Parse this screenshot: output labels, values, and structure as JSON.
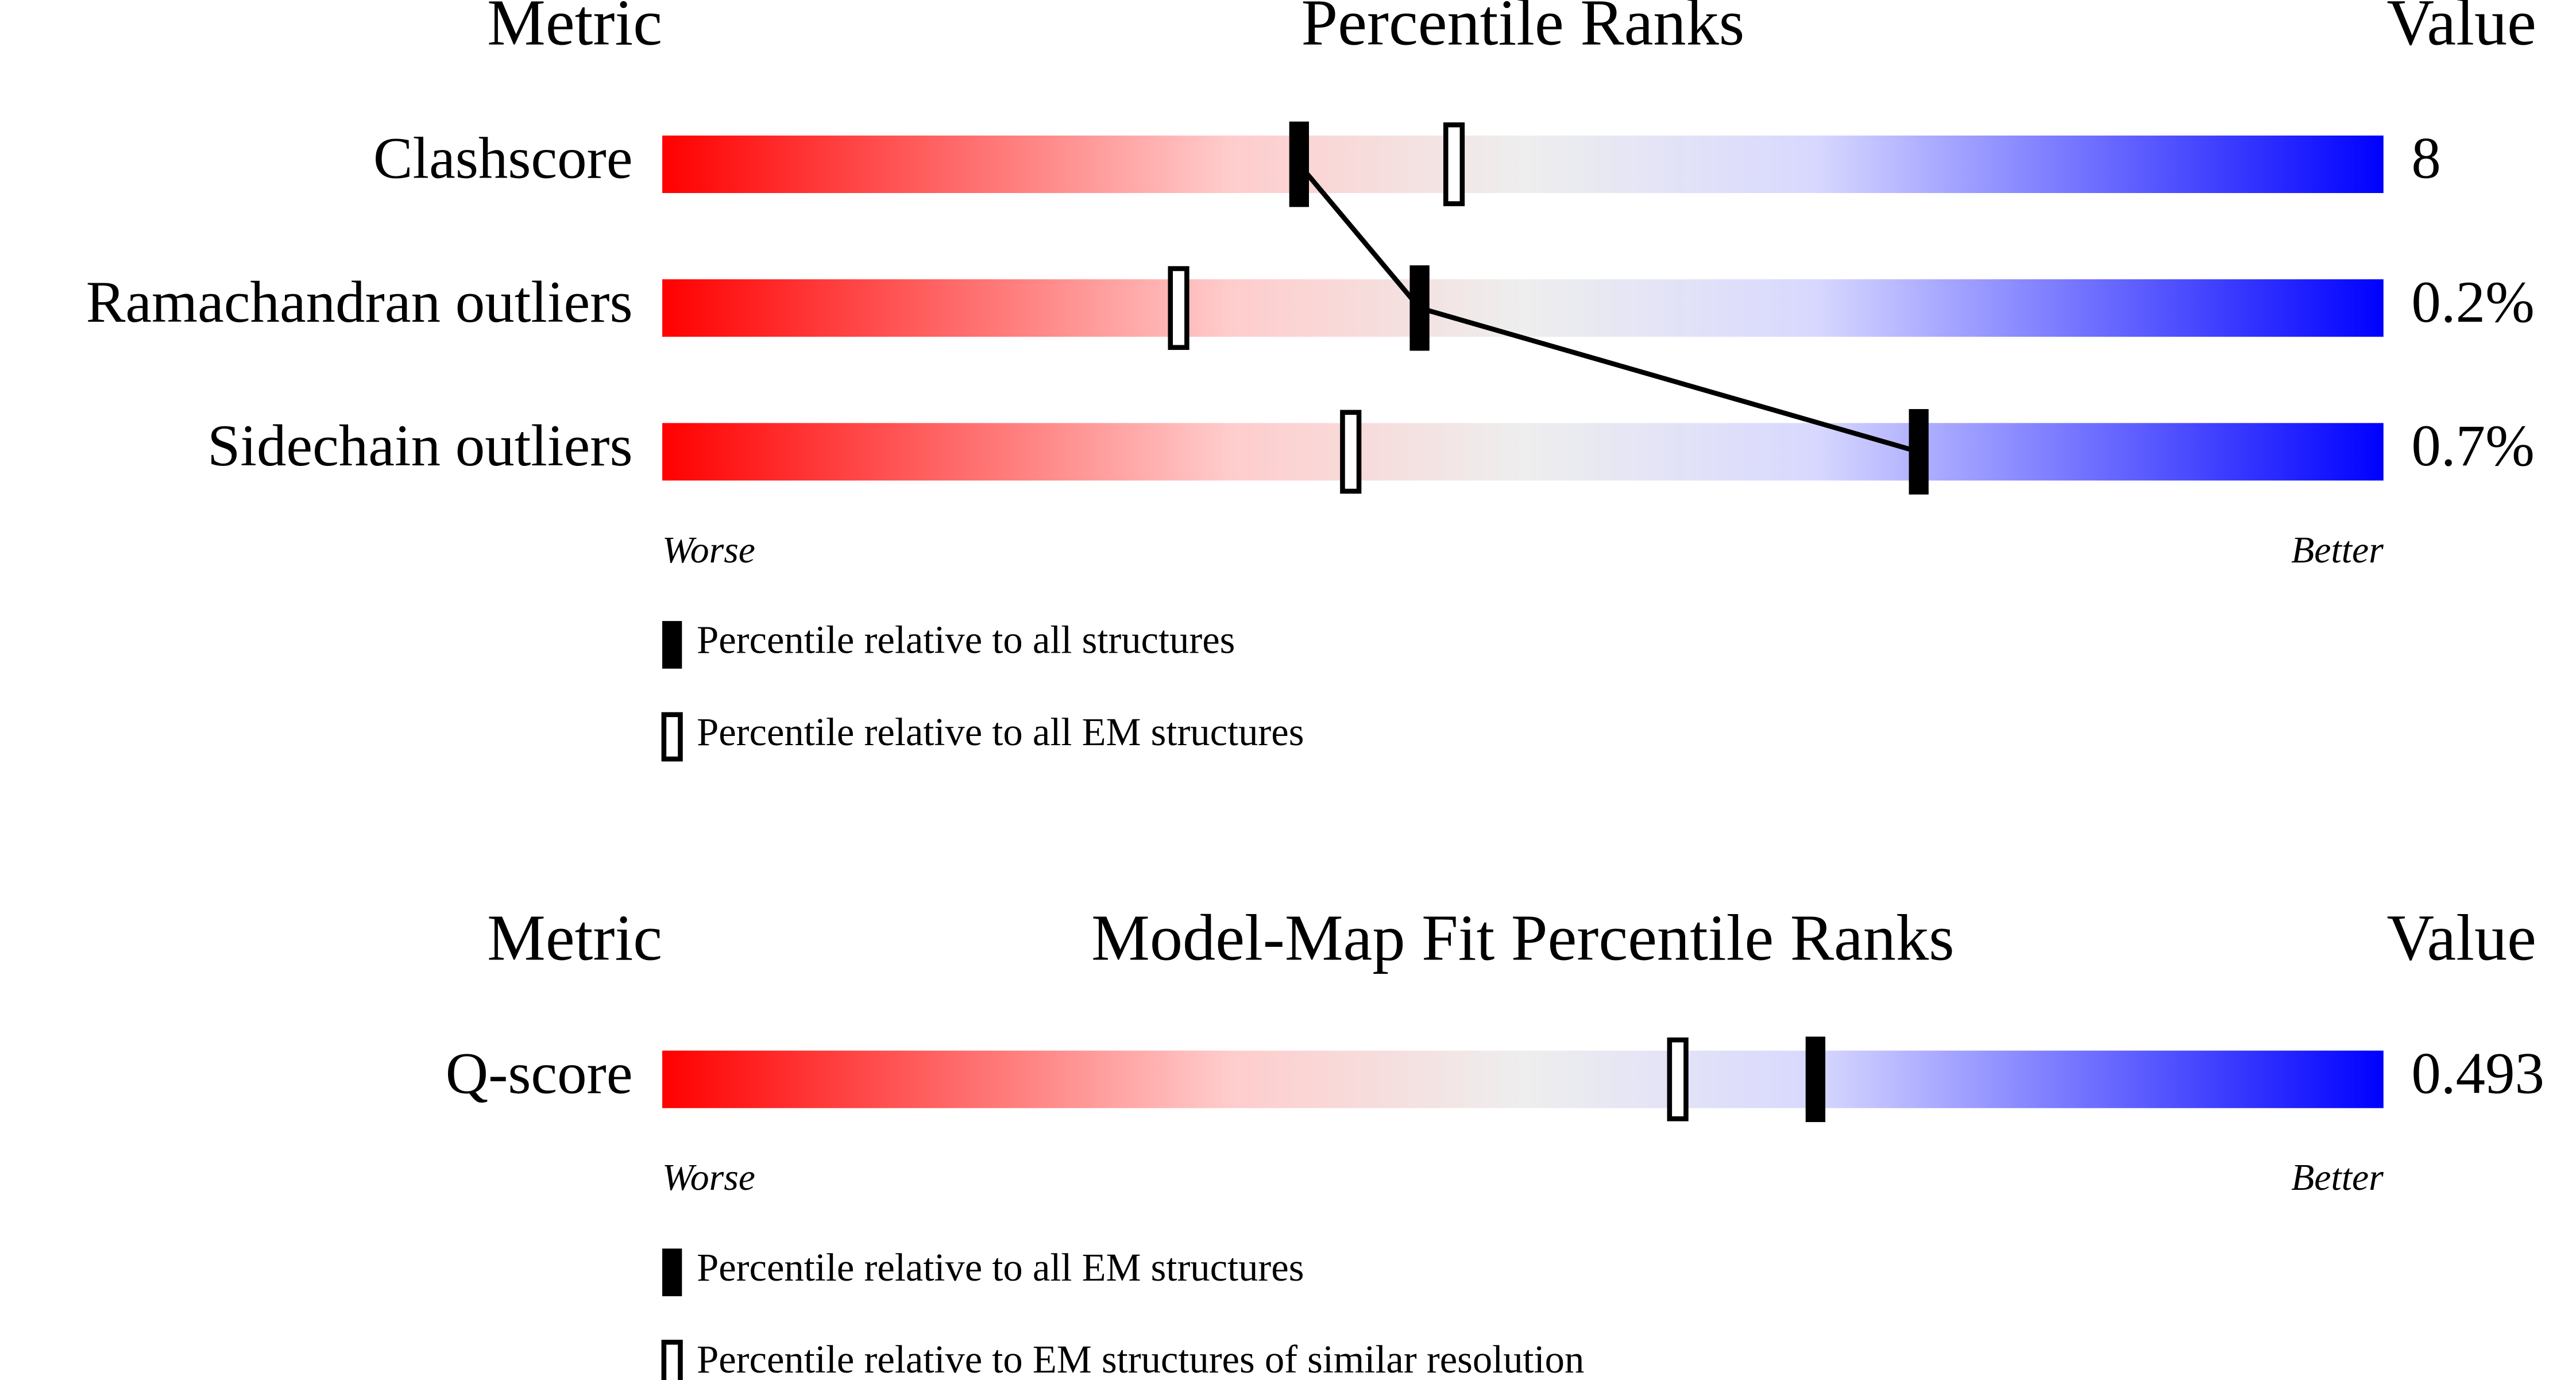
{
  "chart_data": [
    {
      "type": "slider",
      "metric_header": "Metric",
      "title": "Percentile Ranks",
      "value_header": "Value",
      "categories": [
        "Clashscore",
        "Ramachandran outliers",
        "Sidechain outliers"
      ],
      "value_column": [
        "8",
        "0.2%",
        "0.7%"
      ],
      "xlim": [
        0,
        100
      ],
      "xlabel_left": "Worse",
      "xlabel_right": "Better",
      "connect_series": 0,
      "series": [
        {
          "name": "Percentile relative to all structures",
          "style": "filled",
          "color": "#000000",
          "values": [
            37,
            44,
            73
          ]
        },
        {
          "name": "Percentile relative to all EM structures",
          "style": "open",
          "color": "#000000",
          "values": [
            46,
            30,
            40
          ]
        }
      ]
    },
    {
      "type": "slider",
      "metric_header": "Metric",
      "title": "Model-Map Fit Percentile Ranks",
      "value_header": "Value",
      "categories": [
        "Q-score"
      ],
      "value_column": [
        "0.493"
      ],
      "xlim": [
        0,
        100
      ],
      "xlabel_left": "Worse",
      "xlabel_right": "Better",
      "series": [
        {
          "name": "Percentile relative to all EM structures",
          "style": "filled",
          "color": "#000000",
          "values": [
            67
          ]
        },
        {
          "name": "Percentile relative to EM structures of similar resolution",
          "style": "open",
          "color": "#000000",
          "values": [
            59
          ]
        }
      ]
    }
  ]
}
